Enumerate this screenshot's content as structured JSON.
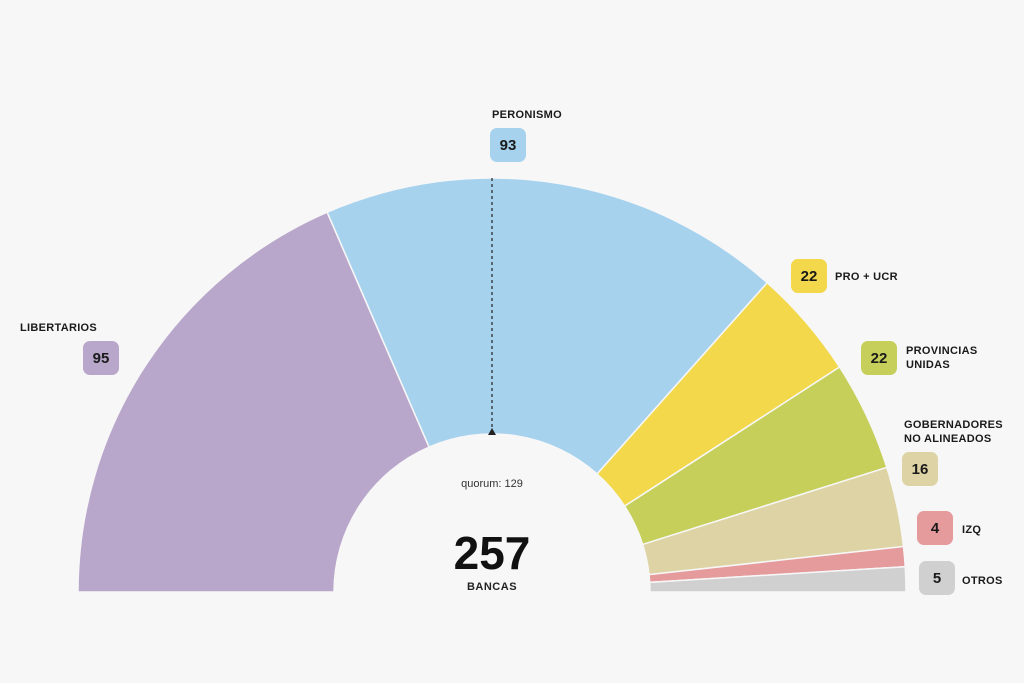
{
  "chart_data": {
    "type": "pie",
    "subtype": "semicircle-parliament",
    "total": 257,
    "total_label": "BANCAS",
    "quorum_label": "quorum: 129",
    "quorum_value": 129,
    "series": [
      {
        "name": "LIBERTARIOS",
        "name_line2": "",
        "value": 95,
        "color": "#b9a7cb"
      },
      {
        "name": "PERONISMO",
        "name_line2": "",
        "value": 93,
        "color": "#a7d2ee"
      },
      {
        "name": "PRO + UCR",
        "name_line2": "",
        "value": 22,
        "color": "#f2d84a"
      },
      {
        "name": "PROVINCIAS",
        "name_line2": "UNIDAS",
        "value": 22,
        "color": "#c5cf5a"
      },
      {
        "name": "GOBERNADORES",
        "name_line2": "NO ALINEADOS",
        "value": 16,
        "color": "#ded3a4"
      },
      {
        "name": "IZQ",
        "name_line2": "",
        "value": 4,
        "color": "#e59a9c"
      },
      {
        "name": "OTROS",
        "name_line2": "",
        "value": 5,
        "color": "#d0d0d0"
      }
    ]
  }
}
